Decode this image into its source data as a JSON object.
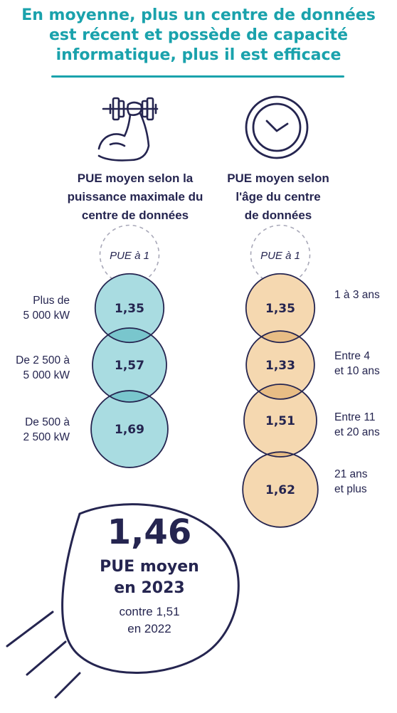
{
  "title_lines": [
    "En moyenne, plus un centre de données",
    "est récent et possède de capacité",
    "informatique, plus il est efficace"
  ],
  "colors": {
    "title": "#1aa2ac",
    "text": "#252550",
    "left_fill": "#a9dce1",
    "left_overlap": "#79c6cd",
    "right_fill": "#f5d8b0",
    "right_overlap": "#e8bd85",
    "outline": "#252550",
    "reference_dash": "#a8a8b8"
  },
  "icons": [
    "dumbbell-arm-icon",
    "clock-icon"
  ],
  "chart_data": [
    {
      "type": "bubble",
      "title_lines": [
        "PUE moyen selon la",
        "puissance maximale du",
        "centre de données"
      ],
      "reference_label": "PUE à 1",
      "reference_value": 1,
      "categories": [
        {
          "label_lines": [
            "Plus de",
            "5 000 kW"
          ],
          "value": 1.35,
          "value_label": "1,35"
        },
        {
          "label_lines": [
            "De 2 500 à",
            "5 000 kW"
          ],
          "value": 1.57,
          "value_label": "1,57"
        },
        {
          "label_lines": [
            "De 500 à",
            "2 500 kW"
          ],
          "value": 1.69,
          "value_label": "1,69"
        }
      ]
    },
    {
      "type": "bubble",
      "title_lines": [
        "PUE moyen selon",
        "l'âge du centre",
        "de données"
      ],
      "reference_label": "PUE à 1",
      "reference_value": 1,
      "categories": [
        {
          "label_lines": [
            "1 à 3 ans"
          ],
          "value": 1.35,
          "value_label": "1,35"
        },
        {
          "label_lines": [
            "Entre 4",
            "et 10 ans"
          ],
          "value": 1.33,
          "value_label": "1,33"
        },
        {
          "label_lines": [
            "Entre 11",
            "et 20 ans"
          ],
          "value": 1.51,
          "value_label": "1,51"
        },
        {
          "label_lines": [
            "21 ans",
            "et plus"
          ],
          "value": 1.62,
          "value_label": "1,62"
        }
      ]
    }
  ],
  "summary": {
    "value": "1,46",
    "caption_lines": [
      "PUE moyen",
      "en 2023"
    ],
    "compare_lines": [
      "contre 1,51",
      "en 2022"
    ]
  }
}
